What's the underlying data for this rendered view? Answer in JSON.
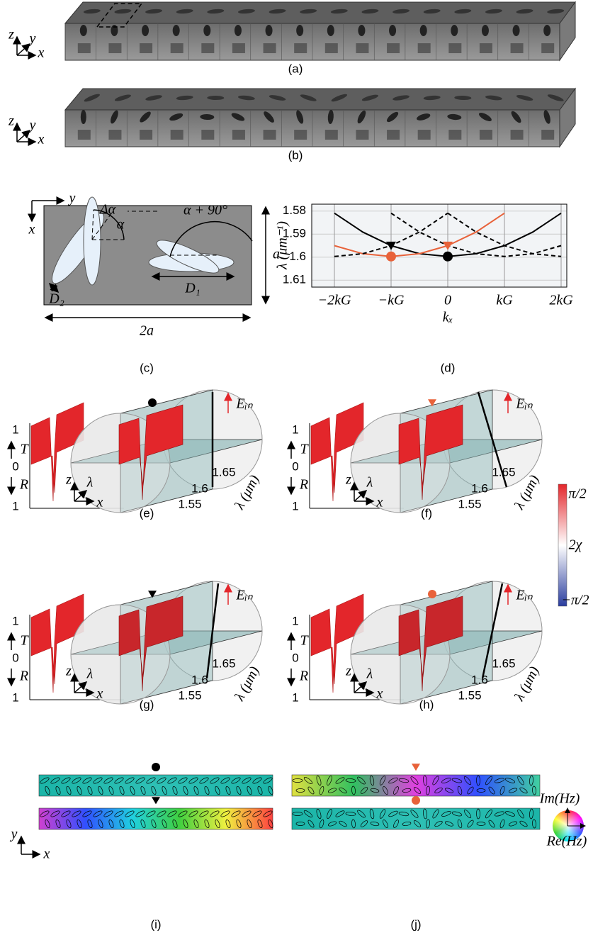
{
  "panels": {
    "a": {
      "label": "(a)",
      "axes": {
        "z": "z",
        "y": "y",
        "x": "x"
      }
    },
    "b": {
      "label": "(b)",
      "axes": {
        "z": "z",
        "y": "y",
        "x": "x"
      }
    },
    "c": {
      "label": "(c)",
      "axes": {
        "y": "y",
        "x": "x"
      },
      "delta_alpha": "Δα",
      "alpha": "α",
      "alpha_90": "α + 90°",
      "d1": "D₁",
      "d2": "D₂",
      "height": "a",
      "width": "2a"
    },
    "spectrum_axes": {
      "t_top": 1,
      "t": "T",
      "zero": 0,
      "r": "R",
      "r_bottom": 1,
      "z": "z",
      "lambda": "λ",
      "x": "x",
      "ticks": [
        1.55,
        1.6,
        1.65
      ],
      "wavelength": "λ (μm)"
    },
    "e": {
      "label": "(e)",
      "marker": "circle",
      "marker_color": "#000000",
      "field": "Eᵢₙ"
    },
    "f": {
      "label": "(f)",
      "marker": "triangle",
      "marker_color": "#e8623a",
      "field": "Eᵢₙ"
    },
    "g": {
      "label": "(g)",
      "marker": "triangle",
      "marker_color": "#000000",
      "field": "Eᵢₙ"
    },
    "h": {
      "label": "(h)",
      "marker": "circle",
      "marker_color": "#e8623a",
      "field": "Eᵢₙ"
    },
    "colorbar": {
      "top": "π/2",
      "middle": "2χ",
      "bottom": "−π/2",
      "colors": [
        "#e3262b",
        "#ffffff",
        "#2a3d9e"
      ]
    },
    "i": {
      "label": "(i)",
      "markers": [
        "circle",
        "triangle"
      ],
      "marker_colors": [
        "#000000",
        "#000000"
      ],
      "axes": {
        "y": "y",
        "x": "x"
      }
    },
    "j": {
      "label": "(j)",
      "markers": [
        "triangle",
        "circle"
      ],
      "marker_colors": [
        "#e8623a",
        "#e8623a"
      ]
    },
    "phase_wheel": {
      "imag": "Im(Hz)",
      "real": "Re(Hz)"
    }
  },
  "chart_data": {
    "type": "line",
    "label": "(d)",
    "x_label": "kₓ",
    "y_label": "λ (μm⁻¹)",
    "x": [
      -2,
      -1.5,
      -1,
      -0.5,
      0,
      0.5,
      1,
      1.5,
      2
    ],
    "series": [
      {
        "color": "#000000",
        "dash": false,
        "values": [
          1.5809,
          1.5891,
          1.595,
          1.5985,
          1.5997,
          1.5985,
          1.595,
          1.5891,
          1.5809
        ]
      },
      {
        "color": "#e8623a",
        "dash": false,
        "values": [
          1.595,
          1.5985,
          1.5997,
          1.5985,
          1.595,
          1.5891,
          1.5809,
          null,
          null
        ]
      },
      {
        "color": "#000000",
        "dash": true,
        "values": [
          1.5997,
          1.5985,
          1.595,
          1.5891,
          1.5809,
          null,
          null,
          null,
          null
        ]
      },
      {
        "color": "#000000",
        "dash": true,
        "values": [
          null,
          null,
          1.5809,
          1.5891,
          1.595,
          1.5985,
          1.5997,
          1.5985,
          1.595
        ]
      },
      {
        "color": "#000000",
        "dash": true,
        "values": [
          null,
          null,
          null,
          null,
          1.5809,
          1.5891,
          1.595,
          1.5985,
          1.5997
        ]
      }
    ],
    "points": [
      {
        "x": 0,
        "y": 1.5997,
        "marker": "circle",
        "color": "#000000"
      },
      {
        "x": -1,
        "y": 1.5997,
        "marker": "circle",
        "color": "#e8623a"
      },
      {
        "x": -1,
        "y": 1.595,
        "marker": "triangle",
        "color": "#000000"
      },
      {
        "x": 0,
        "y": 1.595,
        "marker": "triangle",
        "color": "#e8623a"
      }
    ],
    "xlim": [
      -2.4,
      2.1
    ],
    "ylim": [
      1.613,
      1.577
    ],
    "xticks": [
      {
        "value": -2,
        "label": "−2kG"
      },
      {
        "value": -1,
        "label": "−kG"
      },
      0,
      {
        "value": 1,
        "label": "kG"
      },
      {
        "value": 2,
        "label": "2kG"
      }
    ],
    "yticks": [
      1.58,
      1.59,
      1.6,
      1.61
    ],
    "grid": true
  }
}
